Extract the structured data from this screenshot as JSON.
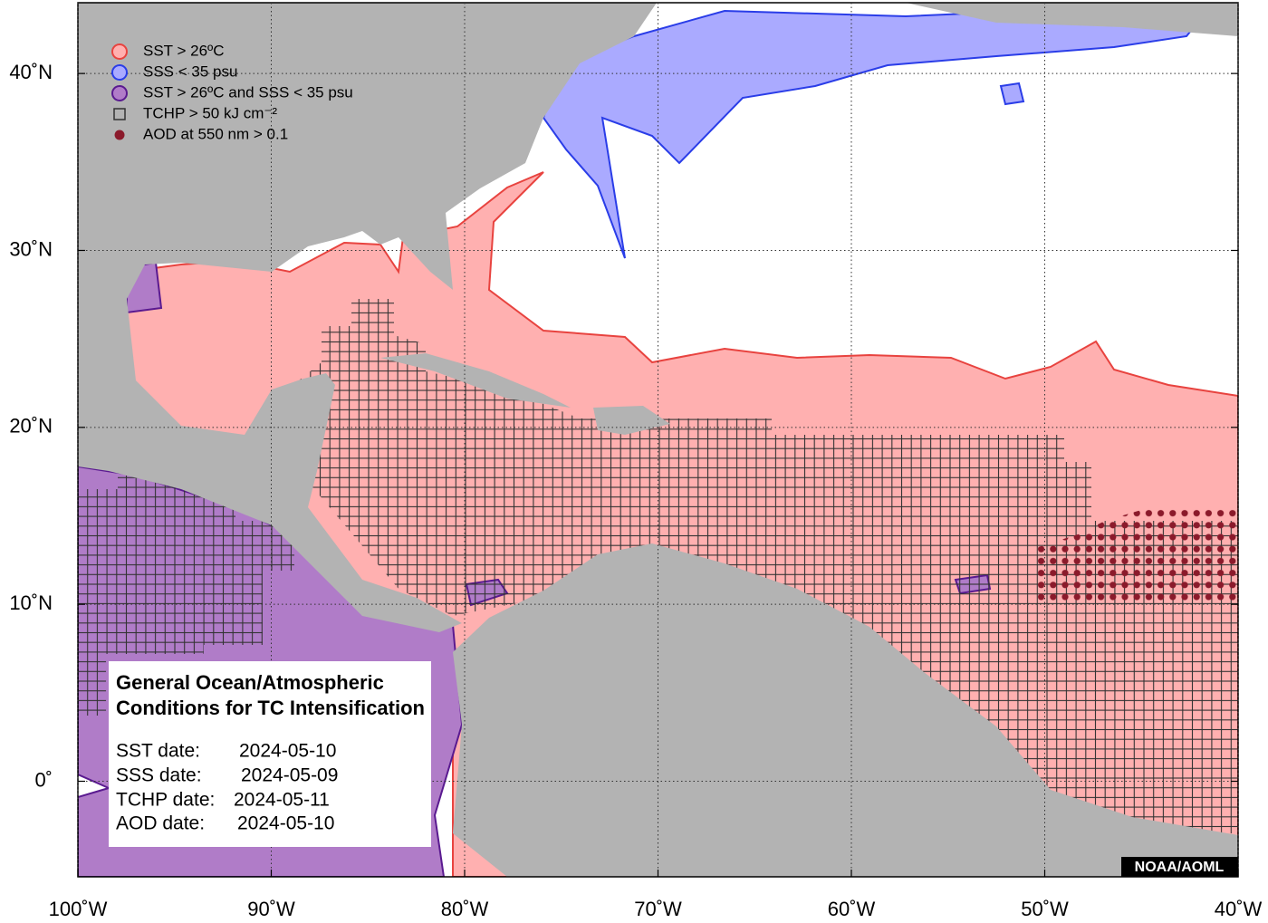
{
  "map": {
    "xlim": [
      -100,
      -40
    ],
    "ylim": [
      -5.4,
      44
    ],
    "xticks": [
      {
        "value": -100,
        "label": "100˚W"
      },
      {
        "value": -90,
        "label": "90˚W"
      },
      {
        "value": -80,
        "label": "80˚W"
      },
      {
        "value": -70,
        "label": "70˚W"
      },
      {
        "value": -60,
        "label": "60˚W"
      },
      {
        "value": -50,
        "label": "50˚W"
      },
      {
        "value": -40,
        "label": "40˚W"
      }
    ],
    "yticks": [
      {
        "value": 0,
        "label": "0˚"
      },
      {
        "value": 10,
        "label": "10˚N"
      },
      {
        "value": 20,
        "label": "20˚N"
      },
      {
        "value": 30,
        "label": "30˚N"
      },
      {
        "value": 40,
        "label": "40˚N"
      }
    ],
    "grid": true,
    "legend": [
      "SST > 26ºC",
      "SSS < 35 psu",
      "SST > 26ºC and SSS < 35 psu",
      "TCHP > 50 kJ cm⁻²",
      "AOD at 550 nm > 0.1"
    ],
    "info": {
      "title": [
        "General Ocean/Atmospheric",
        "Conditions for TC Intensification"
      ],
      "rows": [
        [
          "SST date:",
          "2024-05-10"
        ],
        [
          "SSS date:",
          "2024-05-09"
        ],
        [
          "TCHP date:",
          "2024-05-11"
        ],
        [
          "AOD date:",
          "2024-05-10"
        ]
      ]
    },
    "credit": "NOAA/AOML"
  }
}
